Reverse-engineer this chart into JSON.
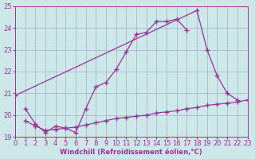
{
  "bg_color": "#cce8e8",
  "grid_color": "#aaaacc",
  "line_color": "#993399",
  "xlabel": "Windchill (Refroidissement éolien,°C)",
  "xmin": 0,
  "xmax": 23,
  "ymin": 19,
  "ymax": 25,
  "yticks": [
    19,
    20,
    21,
    22,
    23,
    24,
    25
  ],
  "xticks": [
    0,
    1,
    2,
    3,
    4,
    5,
    6,
    7,
    8,
    9,
    10,
    11,
    12,
    13,
    14,
    15,
    16,
    17,
    18,
    19,
    20,
    21,
    22,
    23
  ],
  "line1_x": [
    1,
    2,
    3,
    4,
    5,
    6,
    7,
    8,
    9,
    10,
    11,
    12,
    13,
    14,
    15,
    16,
    17
  ],
  "line1_y": [
    20.3,
    19.6,
    19.2,
    19.5,
    19.4,
    19.2,
    20.3,
    21.3,
    21.5,
    22.1,
    22.9,
    23.7,
    23.8,
    24.3,
    24.3,
    24.4,
    23.9
  ],
  "line2_x": [
    0,
    18,
    19,
    20,
    21,
    22
  ],
  "line2_y": [
    20.9,
    24.8,
    23.0,
    21.8,
    21.0,
    20.7
  ],
  "line3_x": [
    1,
    2,
    3,
    4,
    5,
    6,
    7,
    8,
    9,
    10,
    11,
    12,
    13,
    14,
    15,
    16,
    17,
    18,
    19,
    20,
    21,
    22,
    23
  ],
  "line3_y": [
    19.75,
    19.5,
    19.3,
    19.35,
    19.4,
    19.45,
    19.55,
    19.65,
    19.75,
    19.85,
    19.9,
    19.95,
    20.0,
    20.1,
    20.15,
    20.2,
    20.3,
    20.35,
    20.45,
    20.5,
    20.55,
    20.6,
    20.7
  ]
}
